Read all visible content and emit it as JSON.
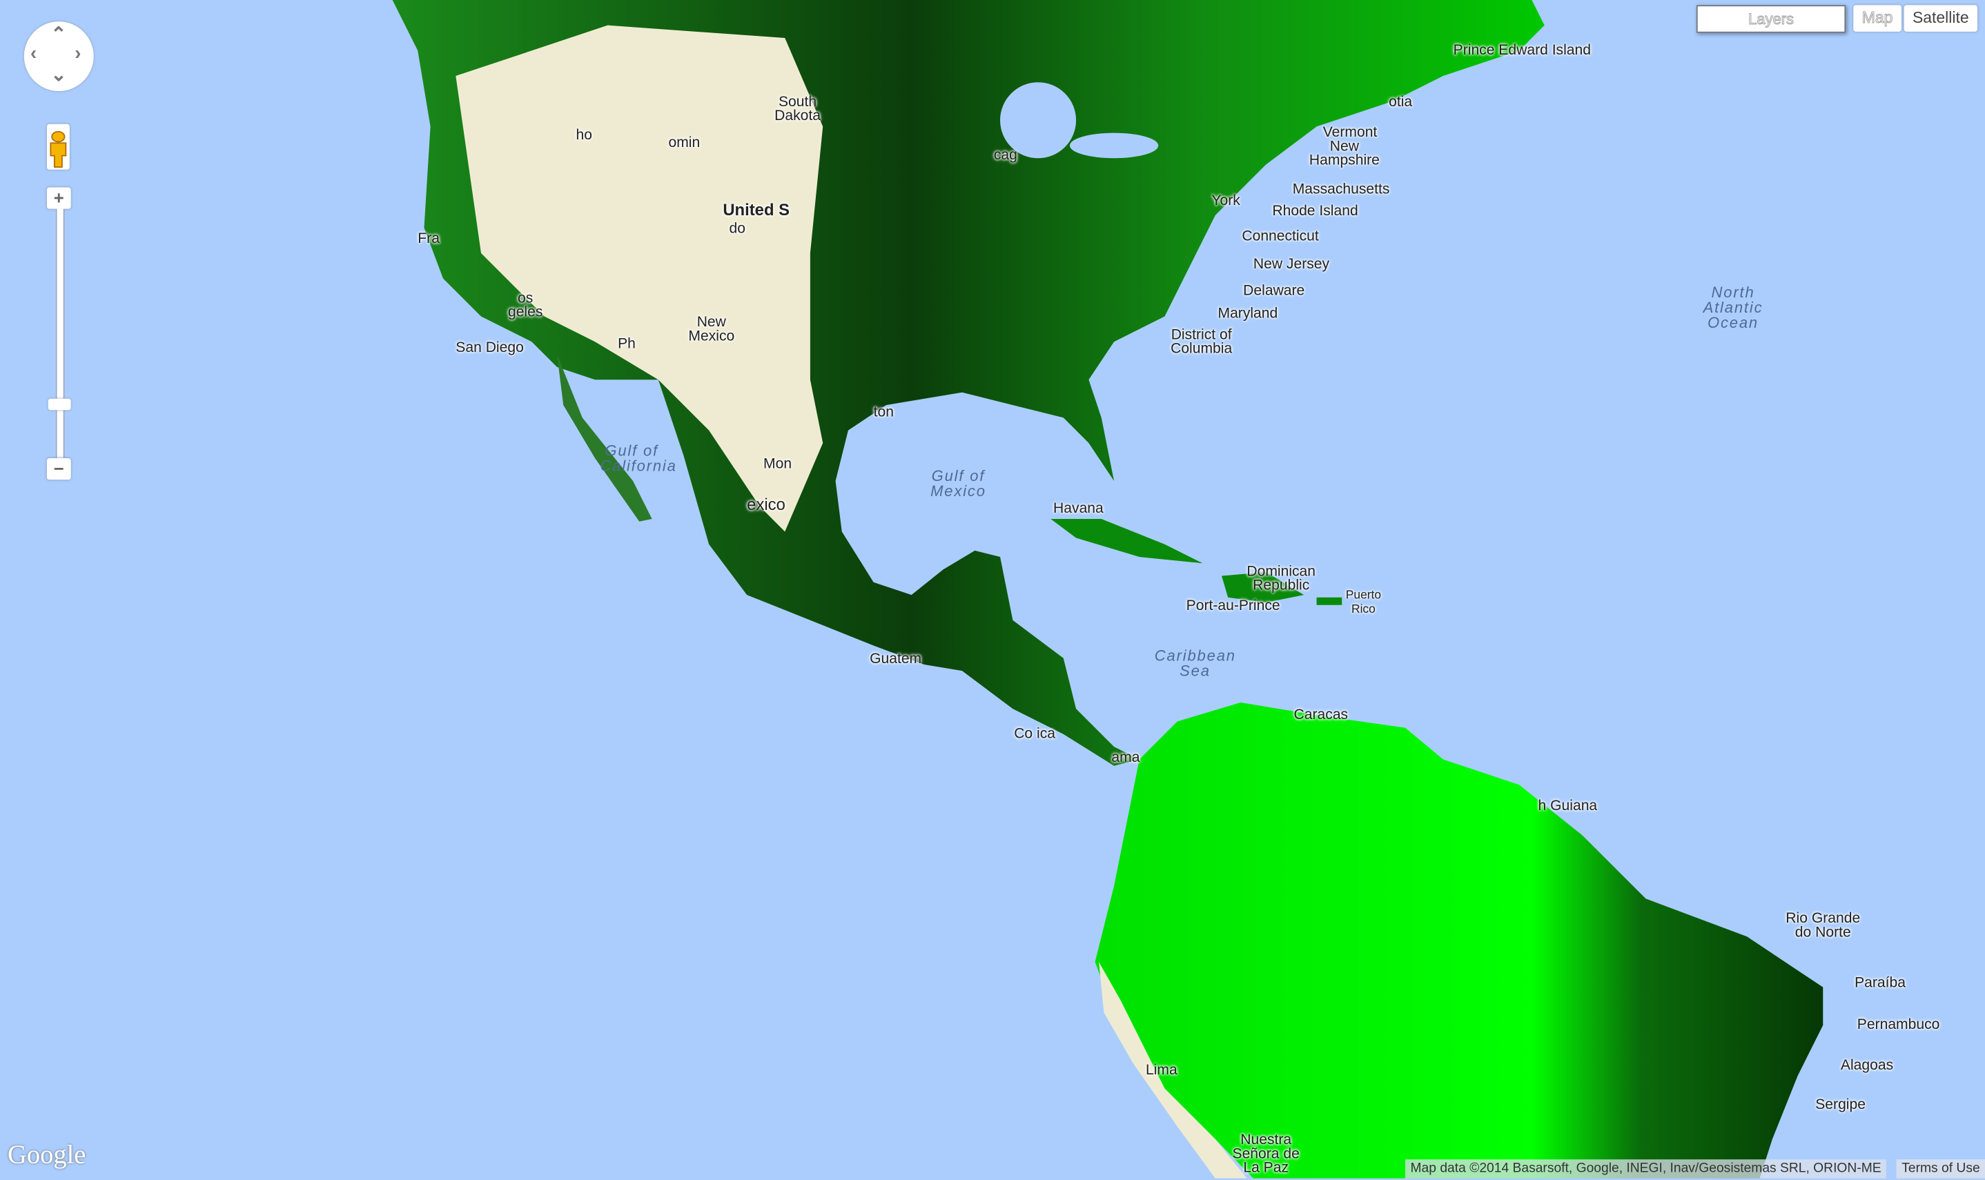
{
  "controls": {
    "pan_icon": "pan-arrows-icon",
    "pegman_icon": "pegman-icon",
    "zoom_in": "+",
    "zoom_out": "−",
    "zoom_level_fraction": 0.23,
    "layers_label": "Layers",
    "map_label": "Map",
    "satellite_label": "Satellite",
    "selected_map_type": "Satellite"
  },
  "colors": {
    "water": "#abcdfd",
    "forest_bright": "#00ff00",
    "forest_dark": "#003300",
    "barren": "#efebd3"
  },
  "labels": {
    "pei": "Prince Edward Island",
    "nova_scotia": "otia",
    "vermont": "Vermont",
    "new_hampshire": "New Hampshire",
    "massachusetts": "Massachusetts",
    "rhode_island": "Rhode Island",
    "connecticut": "Connecticut",
    "new_jersey": "New Jersey",
    "delaware": "Delaware",
    "maryland": "Maryland",
    "dc": "District of Columbia",
    "new_york": "York",
    "united_states": "United S",
    "chicago": "cag",
    "san_diego": "San Diego",
    "los_angeles": "os geles",
    "san_francisco": "Fra",
    "phoenix": "Ph",
    "new_mexico": "New Mexico",
    "wyoming": "omin",
    "idaho": "ho",
    "colorado": "do",
    "south_dakota": "South Dakota",
    "houston": "ton",
    "mexico": "exico",
    "monterrey": "Mon",
    "havana": "Havana",
    "dominican": "Dominican Republic",
    "port_au_prince": "Port-au-Prince",
    "puerto_rico": "Puerto Rico",
    "caracas": "Caracas",
    "guatemala": "Guatem",
    "costa_rica": "Co   ica",
    "panama": "ama",
    "french_guiana": "h Guiana",
    "lima": "Lima",
    "la_paz": "Nuestra Señora de La Paz",
    "rio_grande_do_norte": "Rio Grande do Norte",
    "paraiba": "Paraíba",
    "pernambuco": "Pernambuco",
    "alagoas": "Alagoas",
    "sergipe": "Sergipe"
  },
  "water_labels": {
    "north_atlantic": "North Atlantic Ocean",
    "gulf_of_mexico": "Gulf of Mexico",
    "caribbean": "Caribbean Sea",
    "gulf_of_california": "Gulf of California"
  },
  "footer": {
    "logo": "Google",
    "attribution": "Map data ©2014 Basarsoft, Google, INEGI, Inav/Geosistemas SRL, ORION-ME",
    "terms": "Terms of Use"
  }
}
